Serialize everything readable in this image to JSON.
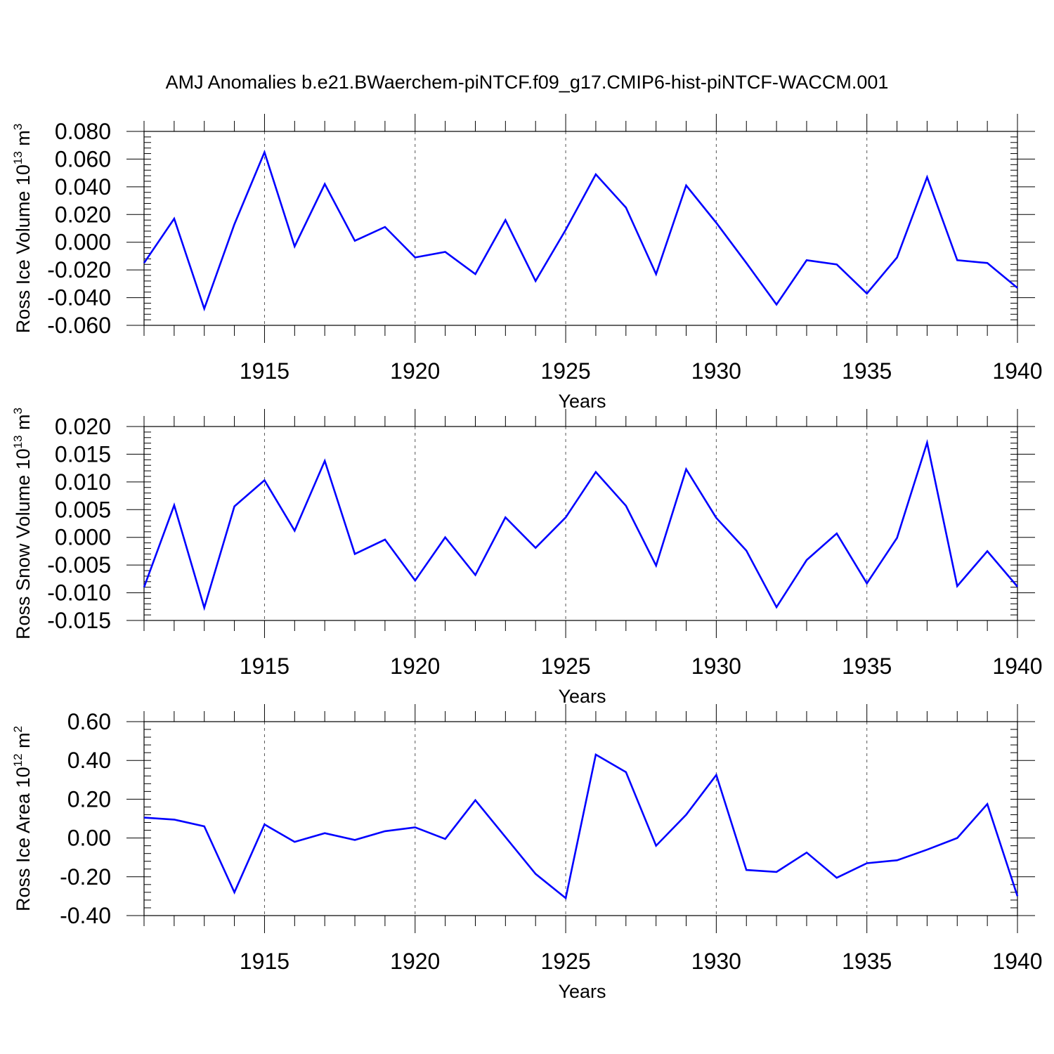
{
  "title": "AMJ Anomalies b.e21.BWaerchem-piNTCF.f09_g17.CMIP6-hist-piNTCF-WACCM.001",
  "colors": {
    "line": "#0000ff",
    "axis": "#000000",
    "grid": "#555555"
  },
  "chart_data": [
    {
      "type": "line",
      "ylabel_base": "Ross Ice Volume 10",
      "ylabel_exp": "13",
      "ylabel_unit": " m",
      "ylabel_unit_exp": "3",
      "xlabel": "Years",
      "xlim": [
        1911,
        1940
      ],
      "ylim": [
        -0.06,
        0.08
      ],
      "grid": "vertical dashed at major ticks",
      "yticks": [
        "0.080",
        "0.060",
        "0.040",
        "0.020",
        "0.000",
        "-0.020",
        "-0.040",
        "-0.060"
      ],
      "ytick_values": [
        0.08,
        0.06,
        0.04,
        0.02,
        0.0,
        -0.02,
        -0.04,
        -0.06
      ],
      "xticks": [
        "1915",
        "1920",
        "1925",
        "1930",
        "1935",
        "1940"
      ],
      "xtick_values": [
        1915,
        1920,
        1925,
        1930,
        1935,
        1940
      ],
      "x": [
        1911,
        1912,
        1913,
        1914,
        1915,
        1916,
        1917,
        1918,
        1919,
        1920,
        1921,
        1922,
        1923,
        1924,
        1925,
        1926,
        1927,
        1928,
        1929,
        1930,
        1931,
        1932,
        1933,
        1934,
        1935,
        1936,
        1937,
        1938,
        1939,
        1940
      ],
      "series": [
        {
          "name": "Ross Ice Volume",
          "values": [
            -0.015,
            0.017,
            -0.048,
            0.013,
            0.065,
            -0.003,
            0.042,
            0.001,
            0.011,
            -0.011,
            -0.007,
            -0.023,
            0.016,
            -0.028,
            0.009,
            0.049,
            0.025,
            -0.023,
            0.041,
            0.014,
            -0.015,
            -0.045,
            -0.013,
            -0.016,
            -0.037,
            -0.011,
            0.047,
            -0.013,
            -0.015,
            -0.033
          ]
        }
      ]
    },
    {
      "type": "line",
      "ylabel_base": "Ross Snow Volume 10",
      "ylabel_exp": "13",
      "ylabel_unit": " m",
      "ylabel_unit_exp": "3",
      "xlabel": "Years",
      "xlim": [
        1911,
        1940
      ],
      "ylim": [
        -0.015,
        0.02
      ],
      "grid": "vertical dashed at major ticks",
      "yticks": [
        "0.020",
        "0.015",
        "0.010",
        "0.005",
        "0.000",
        "-0.005",
        "-0.010",
        "-0.015"
      ],
      "ytick_values": [
        0.02,
        0.015,
        0.01,
        0.005,
        0.0,
        -0.005,
        -0.01,
        -0.015
      ],
      "xticks": [
        "1915",
        "1920",
        "1925",
        "1930",
        "1935",
        "1940"
      ],
      "xtick_values": [
        1915,
        1920,
        1925,
        1930,
        1935,
        1940
      ],
      "x": [
        1911,
        1912,
        1913,
        1914,
        1915,
        1916,
        1917,
        1918,
        1919,
        1920,
        1921,
        1922,
        1923,
        1924,
        1925,
        1926,
        1927,
        1928,
        1929,
        1930,
        1931,
        1932,
        1933,
        1934,
        1935,
        1936,
        1937,
        1938,
        1939,
        1940
      ],
      "series": [
        {
          "name": "Ross Snow Volume",
          "values": [
            -0.009,
            0.0058,
            -0.0127,
            0.0056,
            0.0103,
            0.0012,
            0.0138,
            -0.003,
            -0.0004,
            -0.0078,
            0.0,
            -0.0068,
            0.0036,
            -0.0019,
            0.0036,
            0.0118,
            0.0057,
            -0.0051,
            0.0123,
            0.0035,
            -0.0024,
            -0.0126,
            -0.0041,
            0.0007,
            -0.0083,
            -0.0001,
            0.0171,
            -0.0088,
            -0.0025,
            -0.0089
          ]
        }
      ]
    },
    {
      "type": "line",
      "ylabel_base": "Ross Ice Area 10",
      "ylabel_exp": "12",
      "ylabel_unit": " m",
      "ylabel_unit_exp": "2",
      "xlabel": "Years",
      "xlim": [
        1911,
        1940
      ],
      "ylim": [
        -0.4,
        0.6
      ],
      "grid": "vertical dashed at major ticks",
      "yticks": [
        "0.60",
        "0.40",
        "0.20",
        "0.00",
        "-0.20",
        "-0.40"
      ],
      "ytick_values": [
        0.6,
        0.4,
        0.2,
        0.0,
        -0.2,
        -0.4
      ],
      "xticks": [
        "1915",
        "1920",
        "1925",
        "1930",
        "1935",
        "1940"
      ],
      "xtick_values": [
        1915,
        1920,
        1925,
        1930,
        1935,
        1940
      ],
      "x": [
        1911,
        1912,
        1913,
        1914,
        1915,
        1916,
        1917,
        1918,
        1919,
        1920,
        1921,
        1922,
        1923,
        1924,
        1925,
        1926,
        1927,
        1928,
        1929,
        1930,
        1931,
        1932,
        1933,
        1934,
        1935,
        1936,
        1937,
        1938,
        1939,
        1940
      ],
      "series": [
        {
          "name": "Ross Ice Area",
          "values": [
            0.105,
            0.095,
            0.06,
            -0.28,
            0.07,
            -0.02,
            0.025,
            -0.01,
            0.035,
            0.055,
            -0.005,
            0.195,
            0.005,
            -0.185,
            -0.31,
            0.43,
            0.34,
            -0.04,
            0.12,
            0.325,
            -0.165,
            -0.175,
            -0.075,
            -0.205,
            -0.13,
            -0.115,
            -0.06,
            0.0,
            0.175,
            -0.3
          ]
        }
      ]
    }
  ]
}
